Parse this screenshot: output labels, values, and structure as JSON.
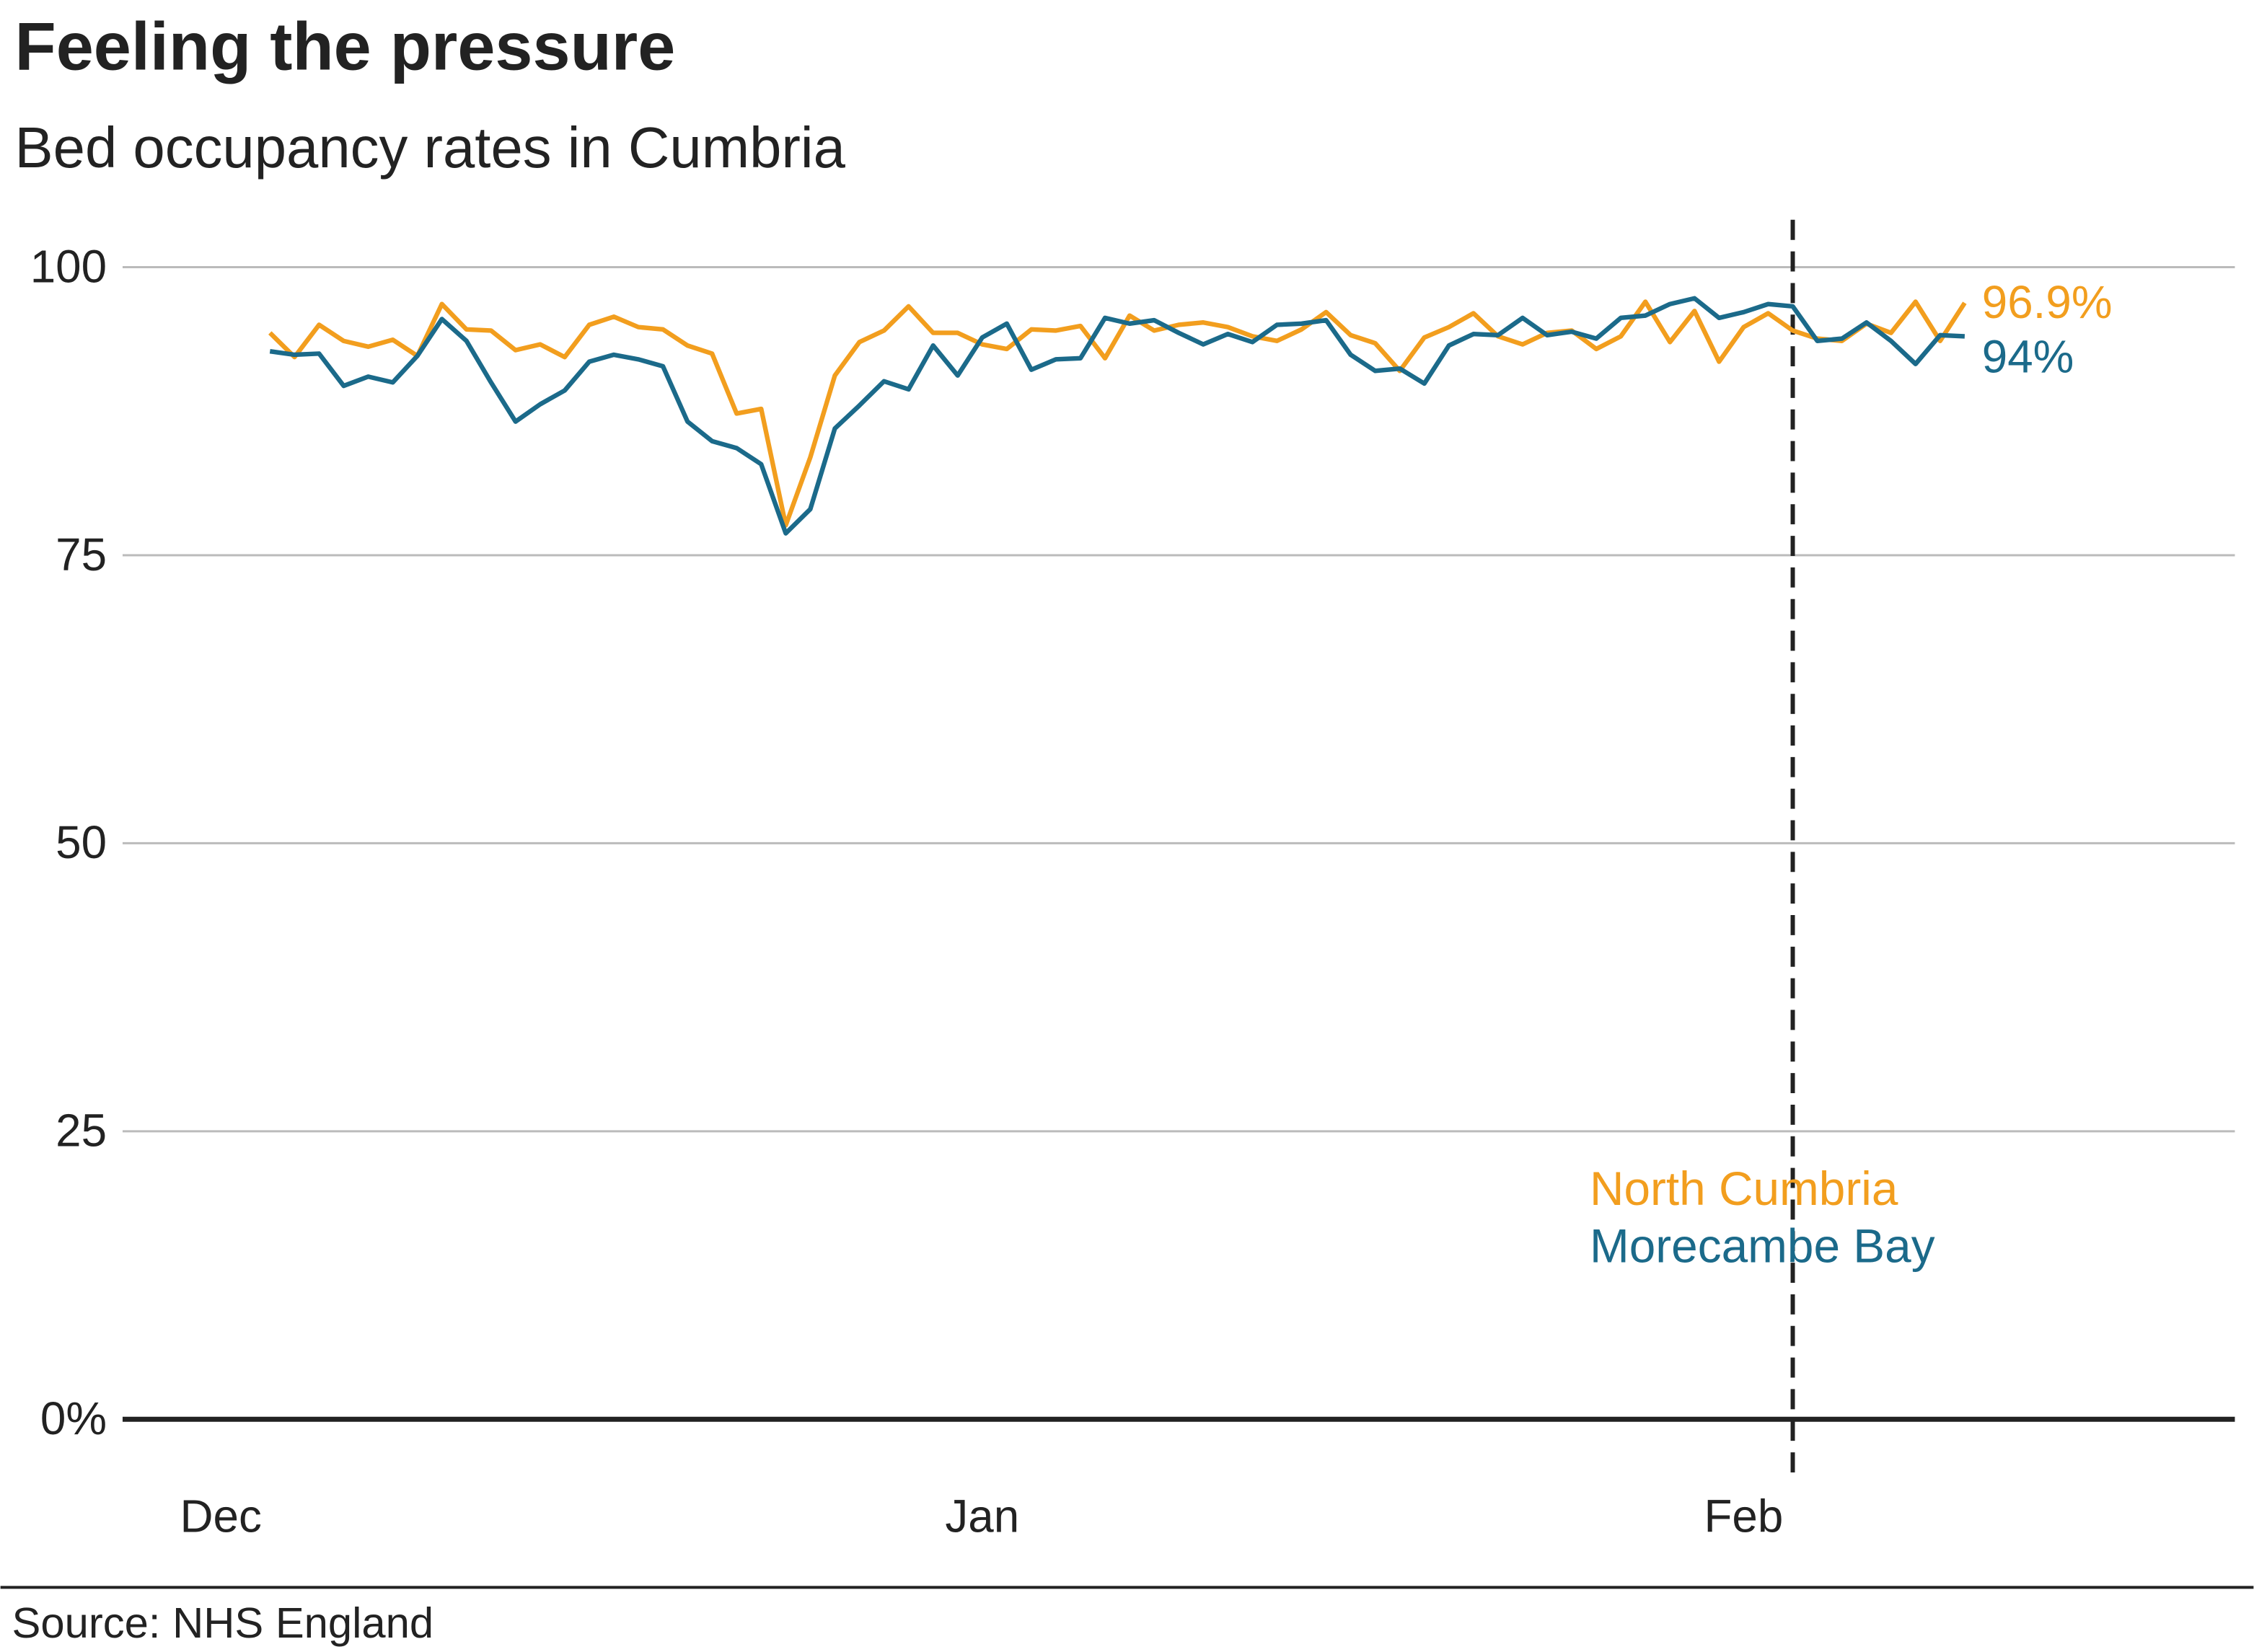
{
  "chart_data": {
    "type": "line",
    "title": "Feeling the pressure",
    "subtitle": "Bed occupancy rates in Cumbria",
    "source": "Source: NHS England",
    "x": [
      2,
      3,
      4,
      5,
      6,
      7,
      8,
      9,
      10,
      11,
      12,
      13,
      14,
      15,
      16,
      17,
      18,
      19,
      20,
      21,
      22,
      23,
      24,
      25,
      26,
      27,
      28,
      29,
      30,
      31,
      32,
      33,
      34,
      35,
      36,
      37,
      38,
      39,
      40,
      41,
      42,
      43,
      44,
      45,
      46,
      47,
      48,
      49,
      50,
      51,
      52,
      53,
      54,
      55,
      56,
      57,
      58,
      59,
      60,
      61,
      62,
      63,
      64,
      65,
      66,
      67,
      68,
      69,
      70,
      71
    ],
    "xlim": [
      -4,
      82
    ],
    "xticks": [
      {
        "value": 0,
        "label": "Dec"
      },
      {
        "value": 31,
        "label": "Jan"
      },
      {
        "value": 62,
        "label": "Feb"
      }
    ],
    "ylim": [
      0,
      100
    ],
    "yticks": [
      {
        "value": 0,
        "label": "0%"
      },
      25,
      50,
      75,
      100
    ],
    "grid": true,
    "vline": 64,
    "series": [
      {
        "name": "North Cumbria",
        "color": "#f29e1e",
        "values": [
          94.3,
          92.2,
          95,
          93.6,
          93.1,
          93.7,
          92.3,
          96.8,
          94.6,
          94.5,
          92.8,
          93.3,
          92.2,
          95,
          95.7,
          94.8,
          94.6,
          93.2,
          92.5,
          87.3,
          87.7,
          77.6,
          83.5,
          90.6,
          93.5,
          94.5,
          96.6,
          94.3,
          94.3,
          93.3,
          92.9,
          94.6,
          94.5,
          94.9,
          92.1,
          95.8,
          94.5,
          95,
          95.2,
          94.8,
          94,
          93.6,
          94.6,
          96.1,
          94.1,
          93.4,
          91,
          93.9,
          94.8,
          96,
          94,
          93.3,
          94.3,
          94.5,
          92.9,
          94,
          97,
          93.5,
          96.2,
          91.8,
          94.8,
          96,
          94.5,
          93.8,
          93.6,
          95.1,
          94.3,
          97,
          93.6,
          96.9
        ],
        "value_labels": [
          null,
          null,
          null,
          null,
          null,
          null,
          null,
          null,
          null,
          null,
          null,
          null,
          null,
          null,
          null,
          null,
          null,
          null,
          null,
          null,
          null,
          null,
          null,
          null,
          null,
          null,
          null,
          null,
          null,
          null,
          null,
          null,
          null,
          null,
          null,
          null,
          null,
          null,
          null,
          null,
          null,
          null,
          null,
          null,
          null,
          null,
          null,
          null,
          null,
          null,
          null,
          null,
          null,
          null,
          null,
          null,
          null,
          null,
          null,
          null,
          null,
          null,
          null,
          null,
          null,
          null,
          null,
          null,
          null,
          "96.9%"
        ]
      },
      {
        "name": "Morecambe Bay",
        "color": "#1b6a8a",
        "values": [
          92.7,
          92.4,
          92.5,
          89.7,
          90.5,
          90,
          92.3,
          95.5,
          93.6,
          90,
          86.6,
          88.1,
          89.3,
          91.8,
          92.4,
          92,
          91.4,
          86.6,
          84.9,
          84.3,
          82.9,
          76.9,
          79,
          86,
          88,
          90.1,
          89.4,
          93.2,
          90.6,
          93.9,
          95.1,
          91.1,
          92,
          92.1,
          95.6,
          95.1,
          95.4,
          94.3,
          93.3,
          94.2,
          93.5,
          95,
          95.1,
          95.4,
          92.4,
          91,
          91.2,
          89.9,
          93.2,
          94.2,
          94.1,
          95.6,
          94.1,
          94.4,
          93.8,
          95.6,
          95.8,
          96.8,
          97.3,
          95.6,
          96.1,
          96.8,
          96.6,
          93.6,
          93.8,
          95.2,
          93.6,
          91.6,
          94.1,
          94
        ],
        "value_labels": [
          null,
          null,
          null,
          null,
          null,
          null,
          null,
          null,
          null,
          null,
          null,
          null,
          null,
          null,
          null,
          null,
          null,
          null,
          null,
          null,
          null,
          null,
          null,
          null,
          null,
          null,
          null,
          null,
          null,
          null,
          null,
          null,
          null,
          null,
          null,
          null,
          null,
          null,
          null,
          null,
          null,
          null,
          null,
          null,
          null,
          null,
          null,
          null,
          null,
          null,
          null,
          null,
          null,
          null,
          null,
          null,
          null,
          null,
          null,
          null,
          null,
          null,
          null,
          null,
          null,
          null,
          null,
          null,
          null,
          "94%"
        ]
      }
    ]
  }
}
